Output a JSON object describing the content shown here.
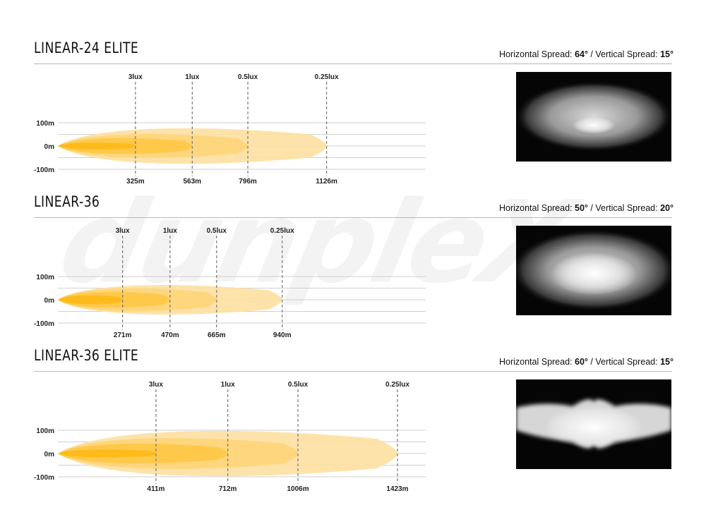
{
  "watermark": "dunpleX",
  "chart_data": [
    {
      "type": "area",
      "title": "LINEAR-24 ELITE",
      "spread": {
        "h_label": "Horizontal Spread:",
        "h_value": "64°",
        "separator": "/",
        "v_label": "Vertical Spread:",
        "v_value": "15°"
      },
      "y_ticks": [
        "100m",
        "0m",
        "-100m"
      ],
      "ylim": [
        -100,
        100
      ],
      "xlim": [
        0,
        1240
      ],
      "lux_labels": [
        "3lux",
        "1lux",
        "0.5lux",
        "0.25lux"
      ],
      "distance_labels": [
        "325m",
        "563m",
        "796m",
        "1126m"
      ],
      "series": [
        {
          "name": "3lux",
          "distance": 325,
          "half_width": 17
        },
        {
          "name": "1lux",
          "distance": 563,
          "half_width": 40
        },
        {
          "name": "0.5lux",
          "distance": 796,
          "half_width": 60
        },
        {
          "name": "0.25lux",
          "distance": 1126,
          "half_width": 90
        }
      ],
      "photo": {
        "shape": "ellipse",
        "hotspot": [
          0.5,
          0.58
        ]
      }
    },
    {
      "type": "area",
      "title": "LINEAR-36",
      "spread": {
        "h_label": "Horizontal Spread:",
        "h_value": "50°",
        "separator": "/",
        "v_label": "Vertical Spread:",
        "v_value": "20°"
      },
      "y_ticks": [
        "100m",
        "0m",
        "-100m"
      ],
      "ylim": [
        -100,
        100
      ],
      "xlim": [
        0,
        1240
      ],
      "lux_labels": [
        "3lux",
        "1lux",
        "0.5lux",
        "0.25lux"
      ],
      "distance_labels": [
        "271m",
        "470m",
        "665m",
        "940m"
      ],
      "series": [
        {
          "name": "3lux",
          "distance": 271,
          "half_width": 22
        },
        {
          "name": "1lux",
          "distance": 470,
          "half_width": 40
        },
        {
          "name": "0.5lux",
          "distance": 665,
          "half_width": 58
        },
        {
          "name": "0.25lux",
          "distance": 940,
          "half_width": 75
        }
      ],
      "photo": {
        "shape": "ellipse",
        "hotspot": [
          0.5,
          0.52
        ]
      }
    },
    {
      "type": "area",
      "title": "LINEAR-36 ELITE",
      "spread": {
        "h_label": "Horizontal Spread:",
        "h_value": "60°",
        "separator": "/",
        "v_label": "Vertical Spread:",
        "v_value": "15°"
      },
      "y_ticks": [
        "100m",
        "0m",
        "-100m"
      ],
      "ylim": [
        -100,
        100
      ],
      "xlim": [
        0,
        1240
      ],
      "lux_labels": [
        "3lux",
        "1lux",
        "0.5lux",
        "0.25lux"
      ],
      "distance_labels": [
        "411m",
        "712m",
        "1006m",
        "1423m"
      ],
      "series": [
        {
          "name": "3lux",
          "distance": 411,
          "half_width": 20
        },
        {
          "name": "1lux",
          "distance": 712,
          "half_width": 50
        },
        {
          "name": "0.5lux",
          "distance": 1006,
          "half_width": 78
        },
        {
          "name": "0.25lux",
          "distance": 1423,
          "half_width": 115
        }
      ],
      "photo": {
        "shape": "butterfly",
        "hotspot": [
          0.5,
          0.5
        ]
      }
    }
  ]
}
